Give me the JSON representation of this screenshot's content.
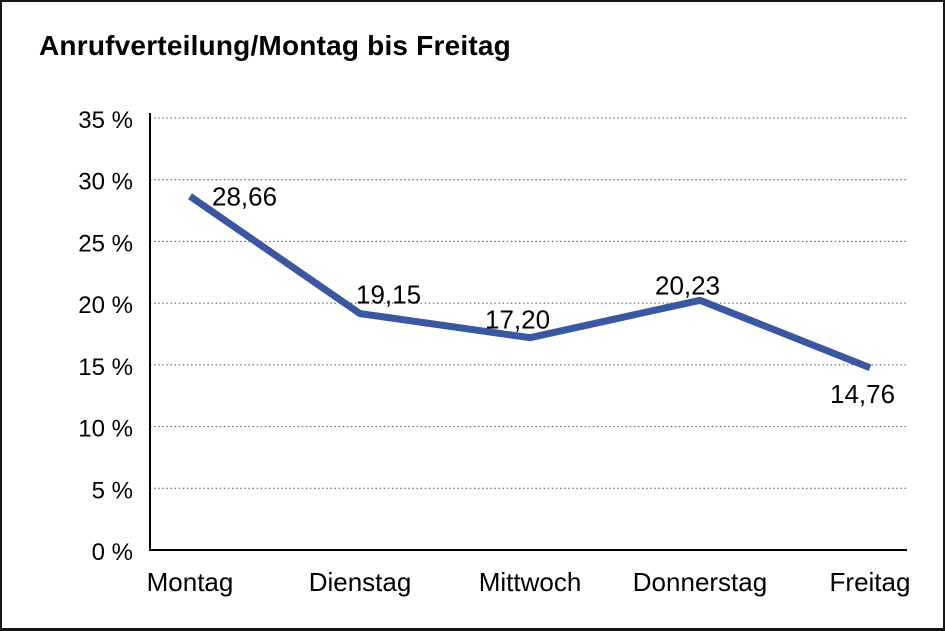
{
  "frame": {
    "background": "#ffffff",
    "border_color": "#161616"
  },
  "chart_data": {
    "type": "line",
    "title": "Anrufverteilung/Montag bis Freitag",
    "categories": [
      "Montag",
      "Dienstag",
      "Mittwoch",
      "Donnerstag",
      "Freitag"
    ],
    "values": [
      28.66,
      19.15,
      17.2,
      20.23,
      14.76
    ],
    "value_labels": [
      "28,66",
      "19,15",
      "17,20",
      "20,23",
      "14,76"
    ],
    "y_tick_values": [
      0,
      5,
      10,
      15,
      20,
      25,
      30,
      35
    ],
    "y_tick_labels": [
      "0 %",
      "5 %",
      "10 %",
      "15 %",
      "20 %",
      "25 %",
      "30 %",
      "35 %"
    ],
    "ylim": [
      0,
      35
    ],
    "xlabel": "",
    "ylabel": "",
    "legend": "none",
    "grid": "horizontal-dotted",
    "line_color": "#3A57A2",
    "axis_color": "#000000",
    "gridline_color": "#4d4d4d",
    "text_color": "#000000"
  }
}
